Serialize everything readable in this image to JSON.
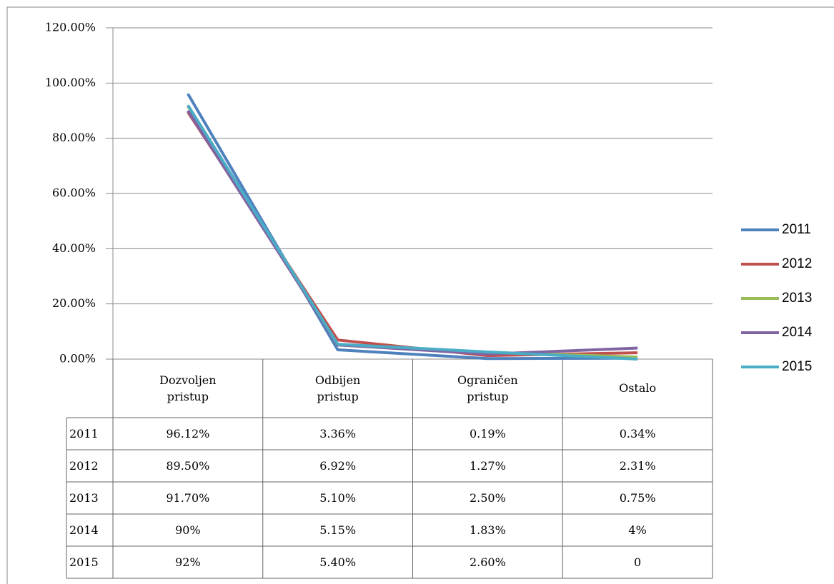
{
  "chart_data": {
    "type": "line",
    "categories": [
      "Dozvoljen pristup",
      "Odbijen pristup",
      "Ograničen pristup",
      "Ostalo"
    ],
    "series": [
      {
        "name": "2011",
        "color": "#4f81bd",
        "values": [
          96.12,
          3.36,
          0.19,
          0.34
        ],
        "value_labels": [
          "96.12%",
          "3.36%",
          "0.19%",
          "0.34%"
        ]
      },
      {
        "name": "2012",
        "color": "#c0504d",
        "values": [
          89.5,
          6.92,
          1.27,
          2.31
        ],
        "value_labels": [
          "89.50%",
          "6.92%",
          "1.27%",
          "2.31%"
        ]
      },
      {
        "name": "2013",
        "color": "#9bbb59",
        "values": [
          91.7,
          5.1,
          2.5,
          0.75
        ],
        "value_labels": [
          "91.70%",
          "5.10%",
          "2.50%",
          "0.75%"
        ]
      },
      {
        "name": "2014",
        "color": "#8064a2",
        "values": [
          90,
          5.15,
          1.83,
          4
        ],
        "value_labels": [
          "90%",
          "5.15%",
          "1.83%",
          "4%"
        ]
      },
      {
        "name": "2015",
        "color": "#4bacc6",
        "values": [
          92,
          5.4,
          2.6,
          0
        ],
        "value_labels": [
          "92%",
          "5.40%",
          "2.60%",
          "0"
        ]
      }
    ],
    "ylim": [
      0,
      120
    ],
    "yticks": [
      {
        "value": 0,
        "label": "0.00%"
      },
      {
        "value": 20,
        "label": "20.00%"
      },
      {
        "value": 40,
        "label": "40.00%"
      },
      {
        "value": 60,
        "label": "60.00%"
      },
      {
        "value": 80,
        "label": "80.00%"
      },
      {
        "value": 100,
        "label": "100.00%"
      },
      {
        "value": 120,
        "label": "120.00%"
      }
    ],
    "grid": true,
    "legend": "right",
    "data_table": true
  }
}
